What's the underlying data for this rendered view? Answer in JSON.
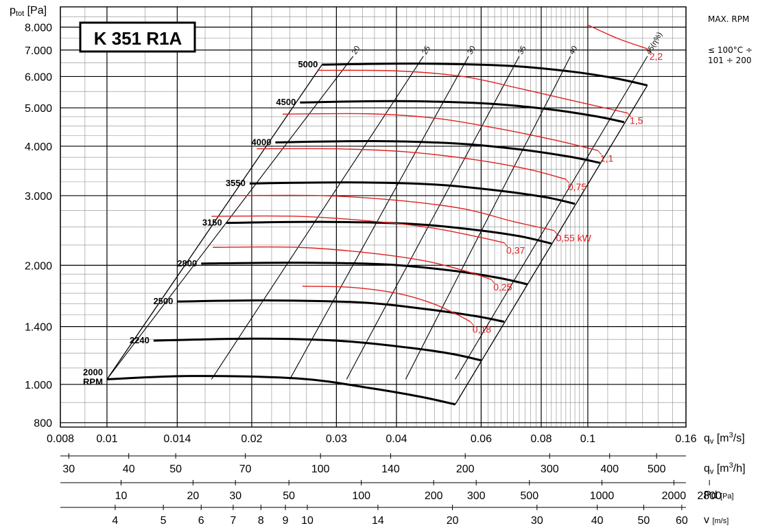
{
  "model_title": "K 351 R1A",
  "notes": {
    "max_rpm": "MAX. RPM",
    "temp_line1": "≤ 100°C ÷",
    "temp_line2": "101 ÷ 200"
  },
  "chart_data": {
    "type": "line",
    "title": "K 351 R1A",
    "ylabel": "p_tot [Pa]",
    "xlabel": "q_v [m³/s]",
    "y_scale": "log",
    "x_scale": "log",
    "xlim": [
      0.008,
      0.16
    ],
    "ylim": [
      780,
      9000
    ],
    "grid": true,
    "y_tick_labels": [
      "8.000",
      "7.000",
      "6.000",
      "5.000",
      "4.000",
      "3.000",
      "2.000",
      "1.400",
      "1.000",
      "800"
    ],
    "y_tick_values": [
      8000,
      7000,
      6000,
      5000,
      4000,
      3000,
      2000,
      1400,
      1000,
      800
    ],
    "x_tick_labels": [
      "0.008",
      "0.01",
      "0.014",
      "0.02",
      "0.03",
      "0.04",
      "0.06",
      "0.08",
      "0.1",
      "0.16"
    ],
    "x_tick_values": [
      0.008,
      0.01,
      0.014,
      0.02,
      0.03,
      0.04,
      0.06,
      0.08,
      0.1,
      0.16
    ],
    "secondary_axes": [
      {
        "label": "q_v [m³/h]",
        "unit_main": "q",
        "unit_sub": "v",
        "unit_rest": "[m³/h]",
        "ticks": [
          {
            "label": "30",
            "x": 0.00833
          },
          {
            "label": "40",
            "x": 0.0111
          },
          {
            "label": "50",
            "x": 0.0139
          },
          {
            "label": "70",
            "x": 0.0194
          },
          {
            "label": "100",
            "x": 0.0278
          },
          {
            "label": "140",
            "x": 0.0389
          },
          {
            "label": "200",
            "x": 0.0556
          },
          {
            "label": "300",
            "x": 0.0833
          },
          {
            "label": "400",
            "x": 0.111
          },
          {
            "label": "500",
            "x": 0.139
          }
        ]
      },
      {
        "label": "Pd [Pa]",
        "unit_main": "Pd",
        "unit_sub": "",
        "unit_rest": "[Pa]",
        "ticks": [
          {
            "label": "10",
            "x": 0.0107
          },
          {
            "label": "20",
            "x": 0.0151
          },
          {
            "label": "30",
            "x": 0.0185
          },
          {
            "label": "50",
            "x": 0.0239
          },
          {
            "label": "100",
            "x": 0.0338
          },
          {
            "label": "200",
            "x": 0.0478
          },
          {
            "label": "300",
            "x": 0.0586
          },
          {
            "label": "500",
            "x": 0.0756
          },
          {
            "label": "1000",
            "x": 0.107
          },
          {
            "label": "2000",
            "x": 0.151
          },
          {
            "label": "2800",
            "x": 0.179
          }
        ]
      },
      {
        "label": "v [m/s]",
        "unit_main": "v",
        "unit_sub": "",
        "unit_rest": "[m/s]",
        "ticks": [
          {
            "label": "4",
            "x": 0.0104
          },
          {
            "label": "5",
            "x": 0.0131
          },
          {
            "label": "6",
            "x": 0.0157
          },
          {
            "label": "7",
            "x": 0.0183
          },
          {
            "label": "8",
            "x": 0.0209
          },
          {
            "label": "9",
            "x": 0.0235
          },
          {
            "label": "10",
            "x": 0.0261
          },
          {
            "label": "14",
            "x": 0.0366
          },
          {
            "label": "20",
            "x": 0.0523
          },
          {
            "label": "30",
            "x": 0.0784
          },
          {
            "label": "40",
            "x": 0.1046
          },
          {
            "label": "50",
            "x": 0.1307
          },
          {
            "label": "60",
            "x": 0.1568
          }
        ]
      }
    ],
    "series": [
      {
        "label": "2000",
        "sublabel": "RPM",
        "kind": "rpm",
        "points": [
          [
            0.01,
            1030
          ],
          [
            0.015,
            1050
          ],
          [
            0.025,
            1035
          ],
          [
            0.035,
            980
          ],
          [
            0.045,
            930
          ],
          [
            0.053,
            890
          ]
        ]
      },
      {
        "label": "2240",
        "kind": "rpm",
        "points": [
          [
            0.0125,
            1290
          ],
          [
            0.02,
            1305
          ],
          [
            0.03,
            1290
          ],
          [
            0.042,
            1240
          ],
          [
            0.052,
            1195
          ],
          [
            0.06,
            1150
          ]
        ]
      },
      {
        "label": "2500",
        "kind": "rpm",
        "points": [
          [
            0.014,
            1620
          ],
          [
            0.022,
            1630
          ],
          [
            0.034,
            1610
          ],
          [
            0.046,
            1550
          ],
          [
            0.058,
            1490
          ],
          [
            0.067,
            1440
          ]
        ]
      },
      {
        "label": "2800",
        "kind": "rpm",
        "points": [
          [
            0.0157,
            2020
          ],
          [
            0.025,
            2030
          ],
          [
            0.038,
            2010
          ],
          [
            0.052,
            1940
          ],
          [
            0.065,
            1860
          ],
          [
            0.075,
            1790
          ]
        ]
      },
      {
        "label": "3150",
        "kind": "rpm",
        "points": [
          [
            0.0177,
            2560
          ],
          [
            0.028,
            2575
          ],
          [
            0.043,
            2545
          ],
          [
            0.058,
            2460
          ],
          [
            0.072,
            2370
          ],
          [
            0.084,
            2270
          ]
        ]
      },
      {
        "label": "3550",
        "kind": "rpm",
        "points": [
          [
            0.0198,
            3220
          ],
          [
            0.032,
            3240
          ],
          [
            0.048,
            3200
          ],
          [
            0.065,
            3090
          ],
          [
            0.082,
            2970
          ],
          [
            0.094,
            2860
          ]
        ]
      },
      {
        "label": "4000",
        "kind": "rpm",
        "points": [
          [
            0.0224,
            4090
          ],
          [
            0.036,
            4120
          ],
          [
            0.054,
            4060
          ],
          [
            0.073,
            3920
          ],
          [
            0.092,
            3760
          ],
          [
            0.106,
            3630
          ]
        ]
      },
      {
        "label": "4500",
        "kind": "rpm",
        "points": [
          [
            0.0252,
            5160
          ],
          [
            0.04,
            5200
          ],
          [
            0.061,
            5130
          ],
          [
            0.083,
            4960
          ],
          [
            0.104,
            4760
          ],
          [
            0.119,
            4600
          ]
        ]
      },
      {
        "label": "5000",
        "kind": "rpm",
        "points": [
          [
            0.028,
            6430
          ],
          [
            0.044,
            6470
          ],
          [
            0.068,
            6390
          ],
          [
            0.092,
            6180
          ],
          [
            0.114,
            5940
          ],
          [
            0.133,
            5700
          ]
        ]
      },
      {
        "label": "0,18",
        "kind": "power",
        "points": [
          [
            0.0255,
            1770
          ],
          [
            0.032,
            1760
          ],
          [
            0.04,
            1700
          ],
          [
            0.047,
            1610
          ],
          [
            0.053,
            1510
          ],
          [
            0.057,
            1440
          ]
        ]
      },
      {
        "label": "0,25",
        "kind": "power",
        "points": [
          [
            0.0166,
            2220
          ],
          [
            0.025,
            2220
          ],
          [
            0.035,
            2150
          ],
          [
            0.046,
            2050
          ],
          [
            0.056,
            1930
          ],
          [
            0.063,
            1840
          ]
        ]
      },
      {
        "label": "0,37",
        "kind": "power",
        "points": [
          [
            0.0165,
            2660
          ],
          [
            0.025,
            2660
          ],
          [
            0.035,
            2590
          ],
          [
            0.047,
            2490
          ],
          [
            0.059,
            2360
          ],
          [
            0.067,
            2280
          ]
        ]
      },
      {
        "label": "0,55 kW",
        "kind": "power",
        "points": [
          [
            0.0186,
            3000
          ],
          [
            0.028,
            3000
          ],
          [
            0.04,
            2920
          ],
          [
            0.055,
            2780
          ],
          [
            0.07,
            2580
          ],
          [
            0.085,
            2450
          ]
        ]
      },
      {
        "label": "0,75",
        "kind": "power",
        "points": [
          [
            0.0205,
            3940
          ],
          [
            0.03,
            3940
          ],
          [
            0.042,
            3870
          ],
          [
            0.058,
            3700
          ],
          [
            0.075,
            3500
          ],
          [
            0.09,
            3300
          ]
        ]
      },
      {
        "label": "1,1",
        "kind": "power",
        "points": [
          [
            0.0232,
            4820
          ],
          [
            0.035,
            4830
          ],
          [
            0.048,
            4710
          ],
          [
            0.064,
            4450
          ],
          [
            0.085,
            4150
          ],
          [
            0.105,
            3900
          ]
        ]
      },
      {
        "label": "1,5",
        "kind": "power",
        "points": [
          [
            0.0275,
            6220
          ],
          [
            0.04,
            6200
          ],
          [
            0.055,
            6000
          ],
          [
            0.072,
            5600
          ],
          [
            0.094,
            5200
          ],
          [
            0.121,
            4850
          ]
        ]
      },
      {
        "label": "2,2",
        "kind": "power",
        "points": [
          [
            0.1,
            8100
          ],
          [
            0.115,
            7500
          ],
          [
            0.133,
            7050
          ]
        ]
      }
    ],
    "efficiency_lines": [
      {
        "label": "20",
        "points": [
          [
            0.01,
            1030
          ],
          [
            0.0325,
            6750
          ]
        ]
      },
      {
        "label": "25",
        "points": [
          [
            0.0165,
            1030
          ],
          [
            0.0455,
            6750
          ]
        ]
      },
      {
        "label": "30",
        "points": [
          [
            0.024,
            1030
          ],
          [
            0.0565,
            6750
          ]
        ]
      },
      {
        "label": "35",
        "points": [
          [
            0.0315,
            1030
          ],
          [
            0.072,
            6750
          ]
        ]
      },
      {
        "label": "40",
        "points": [
          [
            0.0418,
            1030
          ],
          [
            0.092,
            6750
          ]
        ]
      },
      {
        "label": "45(η%)",
        "points": [
          [
            0.053,
            1030
          ],
          [
            0.133,
            6750
          ]
        ]
      }
    ],
    "envelope": {
      "left": [
        [
          0.01,
          1030
        ],
        [
          0.028,
          6430
        ]
      ],
      "right": [
        [
          0.053,
          890
        ],
        [
          0.133,
          5700
        ]
      ]
    },
    "annotations": [
      "MAX. RPM",
      "≤ 100°C ÷",
      "101 ÷ 200"
    ]
  }
}
